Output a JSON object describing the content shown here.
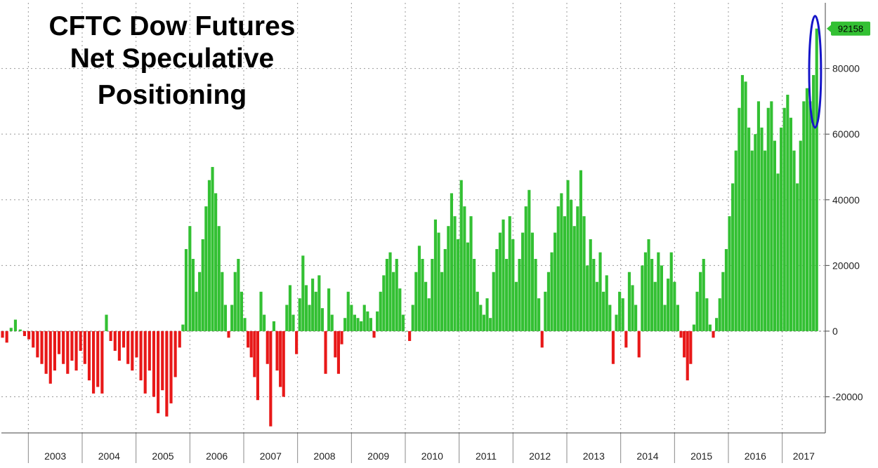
{
  "chart_data": {
    "type": "bar",
    "title_lines": [
      "CFTC Dow Futures",
      "Net Speculative",
      "Positioning"
    ],
    "xlabel": "",
    "ylabel": "",
    "x_range": [
      2002.5,
      2017.8
    ],
    "ylim": [
      -31000,
      100000
    ],
    "y_ticks": [
      -20000,
      0,
      20000,
      40000,
      60000,
      80000
    ],
    "y_tick_labels": [
      "-20000",
      "0",
      "20000",
      "40000",
      "60000",
      "80000"
    ],
    "x_tick_labels": [
      "2003",
      "2004",
      "2005",
      "2006",
      "2007",
      "2008",
      "2009",
      "2010",
      "2011",
      "2012",
      "2013",
      "2014",
      "2015",
      "2016",
      "2017"
    ],
    "x_tick_years": [
      2003,
      2004,
      2005,
      2006,
      2007,
      2008,
      2009,
      2010,
      2011,
      2012,
      2013,
      2014,
      2015,
      2016,
      2017
    ],
    "last_value": 92158,
    "last_value_label": "92158",
    "grid": true,
    "colors": {
      "positive": "#33c033",
      "negative": "#e81818",
      "highlight_ellipse": "#1515c8",
      "last_badge": "#33c033",
      "grid": "#999999"
    },
    "highlight": {
      "from_date": 2017.5,
      "to_date": 2017.72,
      "y_min": 62000,
      "y_max": 96000
    },
    "series": [
      {
        "values": [
          [
            2002.52,
            -2000
          ],
          [
            2002.6,
            -3500
          ],
          [
            2002.68,
            1000
          ],
          [
            2002.76,
            3500
          ],
          [
            2002.85,
            500
          ],
          [
            2002.93,
            -1500
          ],
          [
            2003.01,
            -2500
          ],
          [
            2003.09,
            -5000
          ],
          [
            2003.17,
            -8000
          ],
          [
            2003.25,
            -10000
          ],
          [
            2003.33,
            -13000
          ],
          [
            2003.41,
            -16000
          ],
          [
            2003.49,
            -12000
          ],
          [
            2003.57,
            -7000
          ],
          [
            2003.65,
            -10000
          ],
          [
            2003.73,
            -13000
          ],
          [
            2003.81,
            -9000
          ],
          [
            2003.89,
            -12000
          ],
          [
            2003.97,
            -6000
          ],
          [
            2004.05,
            -10000
          ],
          [
            2004.13,
            -15000
          ],
          [
            2004.21,
            -19000
          ],
          [
            2004.29,
            -17000
          ],
          [
            2004.37,
            -19000
          ],
          [
            2004.45,
            5000
          ],
          [
            2004.53,
            -3000
          ],
          [
            2004.61,
            -6000
          ],
          [
            2004.69,
            -9000
          ],
          [
            2004.77,
            -5000
          ],
          [
            2004.85,
            -10000
          ],
          [
            2004.93,
            -12000
          ],
          [
            2005.01,
            -8000
          ],
          [
            2005.09,
            -15000
          ],
          [
            2005.17,
            -19000
          ],
          [
            2005.25,
            -12000
          ],
          [
            2005.33,
            -20000
          ],
          [
            2005.41,
            -25000
          ],
          [
            2005.49,
            -18000
          ],
          [
            2005.57,
            -26000
          ],
          [
            2005.65,
            -22000
          ],
          [
            2005.73,
            -14000
          ],
          [
            2005.81,
            -5000
          ],
          [
            2005.87,
            2000
          ],
          [
            2005.93,
            25000
          ],
          [
            2006.0,
            32000
          ],
          [
            2006.06,
            22000
          ],
          [
            2006.12,
            12000
          ],
          [
            2006.18,
            18000
          ],
          [
            2006.24,
            28000
          ],
          [
            2006.3,
            38000
          ],
          [
            2006.36,
            46000
          ],
          [
            2006.42,
            50000
          ],
          [
            2006.48,
            42000
          ],
          [
            2006.54,
            32000
          ],
          [
            2006.6,
            18000
          ],
          [
            2006.66,
            8000
          ],
          [
            2006.72,
            -2000
          ],
          [
            2006.78,
            8000
          ],
          [
            2006.84,
            18000
          ],
          [
            2006.9,
            22000
          ],
          [
            2006.96,
            12000
          ],
          [
            2007.02,
            4000
          ],
          [
            2007.08,
            -5000
          ],
          [
            2007.14,
            -8000
          ],
          [
            2007.2,
            -14000
          ],
          [
            2007.26,
            -21000
          ],
          [
            2007.32,
            12000
          ],
          [
            2007.38,
            5000
          ],
          [
            2007.44,
            -10000
          ],
          [
            2007.5,
            -29000
          ],
          [
            2007.56,
            3000
          ],
          [
            2007.62,
            -12000
          ],
          [
            2007.68,
            -17000
          ],
          [
            2007.74,
            -20000
          ],
          [
            2007.8,
            8000
          ],
          [
            2007.86,
            14000
          ],
          [
            2007.92,
            5000
          ],
          [
            2007.98,
            -7000
          ],
          [
            2008.04,
            10000
          ],
          [
            2008.1,
            23000
          ],
          [
            2008.16,
            14000
          ],
          [
            2008.22,
            8000
          ],
          [
            2008.28,
            16000
          ],
          [
            2008.34,
            12000
          ],
          [
            2008.4,
            17000
          ],
          [
            2008.46,
            7000
          ],
          [
            2008.52,
            -13000
          ],
          [
            2008.58,
            13000
          ],
          [
            2008.64,
            5000
          ],
          [
            2008.7,
            -8000
          ],
          [
            2008.76,
            -13000
          ],
          [
            2008.82,
            -4000
          ],
          [
            2008.88,
            4000
          ],
          [
            2008.94,
            12000
          ],
          [
            2009.0,
            8000
          ],
          [
            2009.06,
            5000
          ],
          [
            2009.12,
            4000
          ],
          [
            2009.18,
            3000
          ],
          [
            2009.24,
            8000
          ],
          [
            2009.3,
            6000
          ],
          [
            2009.36,
            4000
          ],
          [
            2009.42,
            -2000
          ],
          [
            2009.48,
            6000
          ],
          [
            2009.54,
            12000
          ],
          [
            2009.6,
            17000
          ],
          [
            2009.66,
            22000
          ],
          [
            2009.72,
            24000
          ],
          [
            2009.78,
            18000
          ],
          [
            2009.84,
            22000
          ],
          [
            2009.9,
            13000
          ],
          [
            2009.96,
            5000
          ],
          [
            2010.02,
            0
          ],
          [
            2010.08,
            -3000
          ],
          [
            2010.14,
            8000
          ],
          [
            2010.2,
            18000
          ],
          [
            2010.26,
            26000
          ],
          [
            2010.32,
            22000
          ],
          [
            2010.38,
            15000
          ],
          [
            2010.44,
            10000
          ],
          [
            2010.5,
            22000
          ],
          [
            2010.56,
            34000
          ],
          [
            2010.62,
            30000
          ],
          [
            2010.68,
            18000
          ],
          [
            2010.74,
            25000
          ],
          [
            2010.8,
            32000
          ],
          [
            2010.86,
            42000
          ],
          [
            2010.92,
            35000
          ],
          [
            2010.98,
            28000
          ],
          [
            2011.04,
            46000
          ],
          [
            2011.1,
            38000
          ],
          [
            2011.16,
            27000
          ],
          [
            2011.22,
            35000
          ],
          [
            2011.28,
            22000
          ],
          [
            2011.34,
            12000
          ],
          [
            2011.4,
            8000
          ],
          [
            2011.46,
            5000
          ],
          [
            2011.52,
            10000
          ],
          [
            2011.58,
            4000
          ],
          [
            2011.64,
            18000
          ],
          [
            2011.7,
            25000
          ],
          [
            2011.76,
            30000
          ],
          [
            2011.82,
            34000
          ],
          [
            2011.88,
            22000
          ],
          [
            2011.94,
            35000
          ],
          [
            2012.0,
            28000
          ],
          [
            2012.06,
            15000
          ],
          [
            2012.12,
            22000
          ],
          [
            2012.18,
            30000
          ],
          [
            2012.24,
            38000
          ],
          [
            2012.3,
            43000
          ],
          [
            2012.36,
            30000
          ],
          [
            2012.42,
            22000
          ],
          [
            2012.48,
            10000
          ],
          [
            2012.54,
            -5000
          ],
          [
            2012.6,
            12000
          ],
          [
            2012.66,
            18000
          ],
          [
            2012.72,
            24000
          ],
          [
            2012.78,
            30000
          ],
          [
            2012.84,
            38000
          ],
          [
            2012.9,
            42000
          ],
          [
            2012.96,
            35000
          ],
          [
            2013.02,
            46000
          ],
          [
            2013.08,
            40000
          ],
          [
            2013.14,
            32000
          ],
          [
            2013.2,
            38000
          ],
          [
            2013.26,
            49000
          ],
          [
            2013.32,
            35000
          ],
          [
            2013.38,
            20000
          ],
          [
            2013.44,
            28000
          ],
          [
            2013.5,
            22000
          ],
          [
            2013.56,
            15000
          ],
          [
            2013.62,
            24000
          ],
          [
            2013.68,
            12000
          ],
          [
            2013.74,
            17000
          ],
          [
            2013.8,
            8000
          ],
          [
            2013.86,
            -10000
          ],
          [
            2013.92,
            5000
          ],
          [
            2013.98,
            12000
          ],
          [
            2014.04,
            10000
          ],
          [
            2014.1,
            -5000
          ],
          [
            2014.16,
            18000
          ],
          [
            2014.22,
            14000
          ],
          [
            2014.28,
            8000
          ],
          [
            2014.34,
            -8000
          ],
          [
            2014.4,
            20000
          ],
          [
            2014.46,
            24000
          ],
          [
            2014.52,
            28000
          ],
          [
            2014.58,
            22000
          ],
          [
            2014.64,
            15000
          ],
          [
            2014.7,
            24000
          ],
          [
            2014.76,
            20000
          ],
          [
            2014.82,
            8000
          ],
          [
            2014.88,
            16000
          ],
          [
            2014.94,
            24000
          ],
          [
            2015.0,
            15000
          ],
          [
            2015.06,
            8000
          ],
          [
            2015.12,
            -2000
          ],
          [
            2015.18,
            -8000
          ],
          [
            2015.24,
            -15000
          ],
          [
            2015.3,
            -10000
          ],
          [
            2015.36,
            2000
          ],
          [
            2015.42,
            12000
          ],
          [
            2015.48,
            18000
          ],
          [
            2015.54,
            22000
          ],
          [
            2015.6,
            10000
          ],
          [
            2015.66,
            2000
          ],
          [
            2015.72,
            -2000
          ],
          [
            2015.78,
            4000
          ],
          [
            2015.84,
            10000
          ],
          [
            2015.9,
            18000
          ],
          [
            2015.96,
            25000
          ],
          [
            2016.02,
            35000
          ],
          [
            2016.08,
            45000
          ],
          [
            2016.14,
            55000
          ],
          [
            2016.2,
            68000
          ],
          [
            2016.26,
            78000
          ],
          [
            2016.32,
            76000
          ],
          [
            2016.38,
            62000
          ],
          [
            2016.44,
            55000
          ],
          [
            2016.5,
            60000
          ],
          [
            2016.56,
            70000
          ],
          [
            2016.62,
            62000
          ],
          [
            2016.68,
            55000
          ],
          [
            2016.74,
            68000
          ],
          [
            2016.8,
            70000
          ],
          [
            2016.86,
            58000
          ],
          [
            2016.92,
            48000
          ],
          [
            2016.98,
            62000
          ],
          [
            2017.04,
            68000
          ],
          [
            2017.1,
            72000
          ],
          [
            2017.16,
            65000
          ],
          [
            2017.22,
            55000
          ],
          [
            2017.28,
            45000
          ],
          [
            2017.34,
            58000
          ],
          [
            2017.4,
            70000
          ],
          [
            2017.46,
            74000
          ],
          [
            2017.52,
            70000
          ],
          [
            2017.58,
            78000
          ],
          [
            2017.64,
            92158
          ]
        ]
      }
    ]
  }
}
